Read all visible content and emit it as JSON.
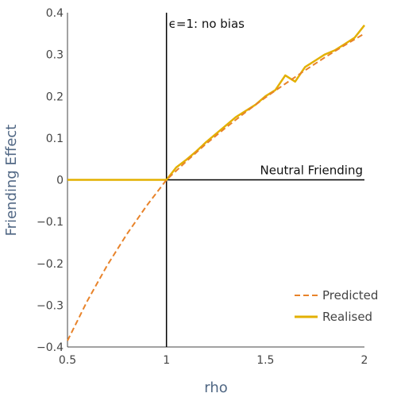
{
  "chart_data": {
    "type": "line",
    "title": "",
    "xlabel": "rho",
    "ylabel": "Friending Effect",
    "xlim": [
      0.5,
      2
    ],
    "ylim": [
      -0.4,
      0.4
    ],
    "xticks": [
      0.5,
      1,
      1.5,
      2
    ],
    "xtick_labels": [
      "0.5",
      "1",
      "1.5",
      "2"
    ],
    "yticks": [
      0.4,
      0.3,
      0.2,
      0.1,
      0,
      -0.1,
      -0.2,
      -0.3,
      -0.4
    ],
    "ytick_labels": [
      "0.4",
      "0.3",
      "0.2",
      "0.1",
      "0",
      "−0.1",
      "−0.2",
      "−0.3",
      "−0.4"
    ],
    "grid": false,
    "legend_position": "bottom-right",
    "annotations": {
      "vertical": {
        "x": 1,
        "text": "ϵ=1: no bias"
      },
      "horizontal": {
        "y": 0,
        "text": "Neutral Friending"
      }
    },
    "series": [
      {
        "name": "Predicted",
        "style": "dashed",
        "color": "#e8832a",
        "x": [
          0.5,
          0.6,
          0.7,
          0.8,
          0.9,
          1.0,
          1.1,
          1.2,
          1.3,
          1.4,
          1.5,
          1.6,
          1.7,
          1.8,
          1.9,
          2.0
        ],
        "y": [
          -0.385,
          -0.29,
          -0.205,
          -0.13,
          -0.062,
          0.0,
          0.044,
          0.086,
          0.125,
          0.162,
          0.197,
          0.23,
          0.262,
          0.293,
          0.322,
          0.35
        ]
      },
      {
        "name": "Realised",
        "style": "solid",
        "color": "#e3b000",
        "x": [
          0.5,
          0.6,
          0.7,
          0.8,
          0.9,
          1.0,
          1.05,
          1.1,
          1.15,
          1.2,
          1.25,
          1.3,
          1.35,
          1.4,
          1.45,
          1.5,
          1.55,
          1.6,
          1.65,
          1.7,
          1.75,
          1.8,
          1.85,
          1.9,
          1.95,
          2.0
        ],
        "y": [
          0.0,
          0.0,
          0.0,
          0.0,
          0.0,
          0.0,
          0.03,
          0.048,
          0.068,
          0.09,
          0.11,
          0.13,
          0.15,
          0.165,
          0.18,
          0.2,
          0.215,
          0.25,
          0.235,
          0.27,
          0.285,
          0.3,
          0.31,
          0.325,
          0.34,
          0.37
        ]
      }
    ]
  }
}
